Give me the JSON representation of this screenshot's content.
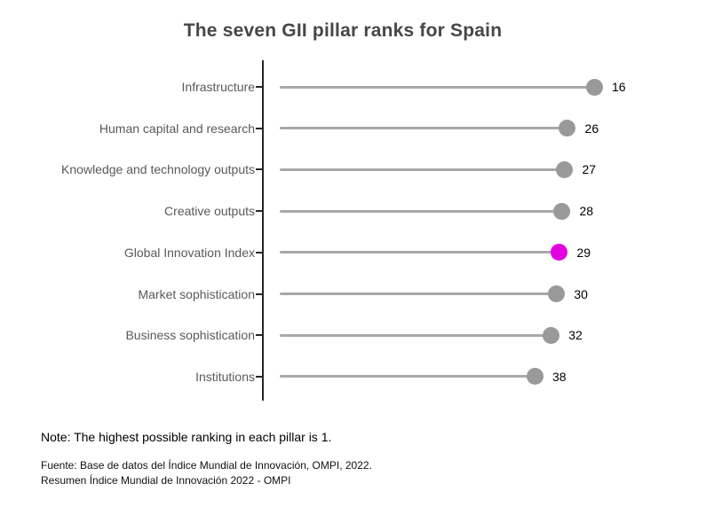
{
  "chart_data": {
    "type": "lollipop",
    "title": "The seven GII pillar ranks for Spain",
    "orientation": "horizontal",
    "categories": [
      "Infrastructure",
      "Human capital and research",
      "Knowledge and technology outputs",
      "Creative outputs",
      "Global Innovation Index",
      "Market sophistication",
      "Business sophistication",
      "Institutions"
    ],
    "values": [
      16,
      26,
      27,
      28,
      29,
      30,
      32,
      38
    ],
    "value_labels": [
      "16",
      "26",
      "27",
      "28",
      "29",
      "30",
      "32",
      "38"
    ],
    "highlight_category": "Global Innovation Index",
    "highlight_index": 4,
    "dot_color": "#999999",
    "highlight_color": "#e101e1",
    "stem_color": "#a8a8a8",
    "axis_color": "#262626",
    "category_label_color": "#595959",
    "value_label_color": "#000000",
    "grid": false,
    "legend": false,
    "value_axis_hidden": true,
    "value_axis_direction": "lower rank further right"
  },
  "footer": {
    "note": "Note: The highest possible ranking in each pillar is 1.",
    "source_line1": "Fuente: Base de datos del Índice Mundial de Innovación, OMPI, 2022.",
    "source_line2": "Resumen Índice Mundial de Innovación 2022 - OMPI"
  }
}
